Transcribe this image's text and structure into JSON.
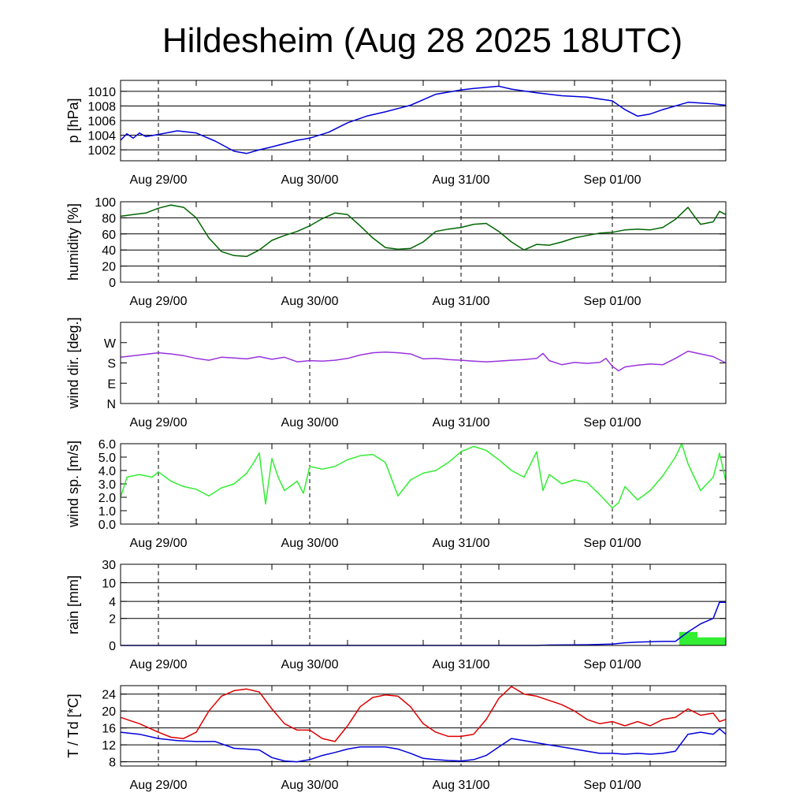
{
  "title": "Hildesheim (Aug 28 2025 18UTC)",
  "chart_data": {
    "type": "line",
    "x_axis": {
      "start_hours": -6,
      "end_hours": 90,
      "tick_labels": [
        "Aug 29/00",
        "Aug 30/00",
        "Aug 31/00",
        "Sep 01/00"
      ],
      "tick_hours": [
        0,
        24,
        48,
        72
      ],
      "dashed_verticals": true
    },
    "panels": [
      {
        "id": "pressure",
        "ylabel": "p [hPa]",
        "ylim": [
          1000.5,
          1011.5
        ],
        "ticks": [
          1002,
          1004,
          1006,
          1008,
          1010
        ],
        "tick_labels": [
          "1002",
          "1004",
          "1006",
          "1008",
          "1010"
        ],
        "grid": true,
        "series": [
          {
            "color": "#0000dd",
            "x": [
              -6,
              -5,
              -4,
              -3,
              -2,
              0,
              3,
              6,
              9,
              12,
              14,
              16,
              18,
              22,
              24,
              27,
              30,
              33,
              36,
              40,
              44,
              48,
              50,
              54,
              56,
              60,
              64,
              66,
              68,
              72,
              74,
              76,
              78,
              80,
              84,
              88,
              90
            ],
            "values": [
              1003.3,
              1004.2,
              1003.6,
              1004.3,
              1003.8,
              1004.1,
              1004.6,
              1004.3,
              1003.2,
              1001.8,
              1001.5,
              1002.0,
              1002.4,
              1003.3,
              1003.6,
              1004.4,
              1005.7,
              1006.6,
              1007.2,
              1008.1,
              1009.6,
              1010.2,
              1010.4,
              1010.7,
              1010.3,
              1009.8,
              1009.4,
              1009.3,
              1009.2,
              1008.7,
              1007.5,
              1006.6,
              1006.9,
              1007.5,
              1008.5,
              1008.3,
              1008.1
            ]
          }
        ]
      },
      {
        "id": "humidity",
        "ylabel": "humidity [%]",
        "ylim": [
          0,
          100
        ],
        "ticks": [
          0,
          20,
          40,
          60,
          80,
          100
        ],
        "tick_labels": [
          "0",
          "20",
          "40",
          "60",
          "80",
          "100"
        ],
        "grid": true,
        "series": [
          {
            "color": "#006600",
            "x": [
              -6,
              -4,
              -2,
              0,
              2,
              4,
              6,
              8,
              10,
              12,
              14,
              16,
              18,
              20,
              22,
              24,
              26,
              28,
              30,
              32,
              34,
              36,
              38,
              40,
              42,
              44,
              46,
              48,
              50,
              52,
              54,
              56,
              58,
              60,
              62,
              64,
              66,
              68,
              70,
              72,
              74,
              76,
              78,
              80,
              82,
              84,
              85,
              86,
              88,
              89,
              90
            ],
            "values": [
              82,
              84,
              86,
              92,
              96,
              93,
              80,
              55,
              38,
              33,
              32,
              40,
              52,
              58,
              63,
              70,
              79,
              86,
              84,
              70,
              55,
              43,
              41,
              42,
              50,
              63,
              66,
              68,
              72,
              73,
              63,
              50,
              40,
              47,
              46,
              50,
              55,
              58,
              61,
              62,
              65,
              66,
              65,
              68,
              78,
              93,
              82,
              72,
              75,
              88,
              84
            ]
          }
        ]
      },
      {
        "id": "wind_dir",
        "ylabel": "wind dir. [deg.]",
        "ylim": [
          0,
          360
        ],
        "ticks": [
          0,
          90,
          180,
          270
        ],
        "tick_labels": [
          "N",
          "E",
          "S",
          "W"
        ],
        "grid": false,
        "series": [
          {
            "color": "#9933dd",
            "x": [
              -6,
              -3,
              0,
              2,
              4,
              6,
              8,
              10,
              12,
              14,
              16,
              18,
              20,
              22,
              24,
              26,
              28,
              30,
              32,
              34,
              36,
              38,
              40,
              42,
              44,
              46,
              48,
              50,
              52,
              54,
              56,
              58,
              60,
              61,
              62,
              64,
              66,
              68,
              70,
              71,
              72,
              73,
              74,
              76,
              78,
              80,
              82,
              84,
              86,
              88,
              90
            ],
            "values": [
              205,
              215,
              225,
              220,
              212,
              200,
              192,
              205,
              202,
              198,
              208,
              196,
              205,
              185,
              190,
              188,
              192,
              200,
              215,
              225,
              228,
              225,
              220,
              198,
              200,
              195,
              192,
              188,
              185,
              188,
              192,
              195,
              200,
              222,
              190,
              172,
              182,
              178,
              182,
              200,
              165,
              145,
              162,
              170,
              175,
              172,
              200,
              232,
              220,
              208,
              180
            ]
          }
        ]
      },
      {
        "id": "wind_speed",
        "ylabel": "wind sp. [m/s]",
        "ylim": [
          0,
          6
        ],
        "ticks": [
          0,
          1,
          2,
          3,
          4,
          5,
          6
        ],
        "tick_labels": [
          "0.0",
          "1.0",
          "2.0",
          "3.0",
          "4.0",
          "5.0",
          "6.0"
        ],
        "grid": false,
        "series": [
          {
            "color": "#33ee33",
            "x": [
              -6,
              -5,
              -3,
              -1,
              0,
              2,
              4,
              6,
              8,
              10,
              12,
              14,
              15,
              16,
              17,
              18,
              19,
              20,
              22,
              23,
              24,
              26,
              28,
              30,
              32,
              34,
              36,
              38,
              40,
              42,
              44,
              46,
              48,
              50,
              52,
              54,
              56,
              58,
              60,
              61,
              62,
              64,
              66,
              68,
              70,
              72,
              73,
              74,
              76,
              78,
              80,
              82,
              83,
              84,
              86,
              88,
              89,
              90
            ],
            "values": [
              2.0,
              3.5,
              3.7,
              3.5,
              3.9,
              3.2,
              2.8,
              2.6,
              2.1,
              2.7,
              3.0,
              3.8,
              4.5,
              5.3,
              1.5,
              4.9,
              3.5,
              2.5,
              3.2,
              2.3,
              4.3,
              4.1,
              4.3,
              4.8,
              5.1,
              5.2,
              4.6,
              2.1,
              3.3,
              3.8,
              4.0,
              4.6,
              5.4,
              5.8,
              5.5,
              4.8,
              4.0,
              3.5,
              5.4,
              2.5,
              3.7,
              3.0,
              3.3,
              3.1,
              2.2,
              1.2,
              1.6,
              2.8,
              1.8,
              2.5,
              3.6,
              5.0,
              6.0,
              4.5,
              2.5,
              3.5,
              5.3,
              3.2
            ]
          }
        ]
      },
      {
        "id": "rain",
        "ylabel": "rain [mm]",
        "ylim": [
          0,
          30
        ],
        "ticks": [
          0,
          2,
          4,
          10,
          30
        ],
        "tick_labels": [
          "0",
          "2",
          "4",
          "10",
          "30"
        ],
        "tick_positions": [
          0,
          0.333,
          0.543,
          0.773,
          1.0
        ],
        "grid": true,
        "series": [
          {
            "color": "#0000dd",
            "x": [
              -6,
              60,
              62,
              68,
              72,
              74,
              76,
              80,
              82,
              84,
              85,
              86,
              88,
              89,
              90
            ],
            "values": [
              0,
              0,
              0.03,
              0.05,
              0.1,
              0.2,
              0.25,
              0.3,
              0.3,
              1.0,
              1.3,
              1.6,
              2.0,
              3.9,
              3.9
            ]
          }
        ],
        "bars": [
          {
            "color": "#33ee33",
            "x0": 82.6,
            "x1": 85.5,
            "value": 1.0
          },
          {
            "color": "#33ee33",
            "x0": 85.5,
            "x1": 90,
            "value": 0.6
          }
        ]
      },
      {
        "id": "temperature",
        "ylabel": "T / Td [*C]",
        "ylim": [
          7,
          26
        ],
        "ticks": [
          8,
          12,
          16,
          20,
          24
        ],
        "tick_labels": [
          "8",
          "12",
          "16",
          "20",
          "24"
        ],
        "grid": true,
        "series": [
          {
            "color": "#dd0000",
            "x": [
              -6,
              -3,
              0,
              2,
              4,
              6,
              8,
              10,
              12,
              14,
              16,
              18,
              20,
              22,
              24,
              26,
              28,
              30,
              32,
              34,
              36,
              38,
              40,
              42,
              44,
              46,
              48,
              50,
              52,
              54,
              56,
              58,
              60,
              62,
              64,
              66,
              68,
              70,
              72,
              74,
              76,
              78,
              80,
              82,
              84,
              86,
              88,
              89,
              90
            ],
            "values": [
              18.5,
              17,
              15,
              13.8,
              13.5,
              15,
              20,
              23.5,
              24.8,
              25.2,
              24.5,
              20.5,
              17,
              15.5,
              15.5,
              13.5,
              12.8,
              16.5,
              21,
              23.2,
              23.8,
              23.5,
              21,
              17,
              15,
              14,
              14,
              14.5,
              18,
              23,
              25.8,
              24,
              23.5,
              22.5,
              21.5,
              20,
              18,
              17,
              17.5,
              16.5,
              17.5,
              16.5,
              18,
              18.5,
              20.5,
              19,
              19.5,
              17.5,
              18
            ]
          },
          {
            "color": "#0000dd",
            "x": [
              -6,
              -3,
              0,
              3,
              6,
              9,
              12,
              14,
              16,
              18,
              20,
              22,
              24,
              26,
              28,
              30,
              32,
              34,
              36,
              38,
              40,
              42,
              44,
              46,
              48,
              50,
              52,
              54,
              56,
              58,
              60,
              62,
              64,
              66,
              68,
              70,
              72,
              74,
              76,
              78,
              80,
              82,
              84,
              86,
              88,
              89,
              90
            ],
            "values": [
              15,
              14.5,
              13.5,
              13,
              12.8,
              12.8,
              11.2,
              11,
              10.8,
              9,
              8.2,
              8,
              8.5,
              9.5,
              10.2,
              11,
              11.5,
              11.5,
              11.5,
              11,
              10,
              8.8,
              8.5,
              8.3,
              8.2,
              8.5,
              9.5,
              11.5,
              13.5,
              13,
              12.5,
              12,
              11.5,
              11,
              10.5,
              10,
              10,
              9.8,
              10,
              9.8,
              10,
              10.5,
              14.5,
              15,
              14.5,
              15.8,
              14.5
            ]
          }
        ]
      }
    ]
  }
}
